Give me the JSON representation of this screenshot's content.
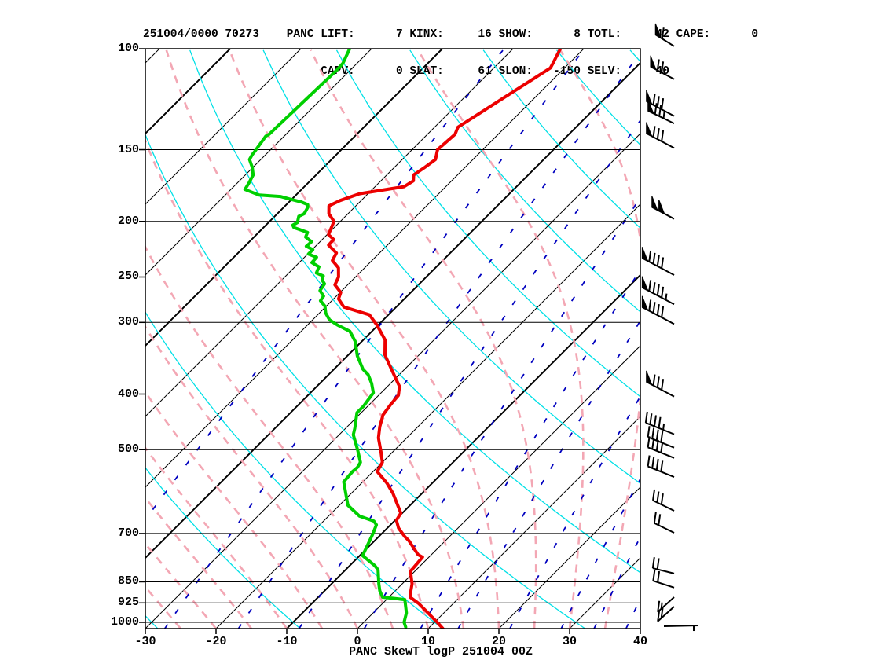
{
  "header": {
    "line1": "251004/0000 70273    PANC LIFT:      7 KINX:     16 SHOW:      8 TOTL:     42 CAPE:      0",
    "line2": "                          CAPV:      0 SLAT:     61 SLON:   -150 SELV:     40"
  },
  "title": "PANC SkewT logP 251004 00Z",
  "chart_data": {
    "type": "skewt_logp",
    "station": "PANC",
    "station_id": "70273",
    "datetime": "251004/0000",
    "valid_label": "251004 00Z",
    "indices": {
      "LIFT": 7,
      "KINX": 16,
      "SHOW": 8,
      "TOTL": 42,
      "CAPE": 0,
      "CAPV": 0,
      "SLAT": 61,
      "SLON": -150,
      "SELV": 40
    },
    "pressure_ticks": [
      100,
      150,
      200,
      250,
      300,
      400,
      500,
      700,
      850,
      925,
      1000
    ],
    "temp_ticks": [
      -30,
      -20,
      -10,
      0,
      10,
      20,
      30,
      40
    ],
    "profile_columns": [
      "pressure_hpa",
      "temp_c"
    ],
    "temperature_profile": [
      [
        100,
        -53.3
      ],
      [
        106,
        -52.3
      ],
      [
        108,
        -52.0
      ],
      [
        137,
        -56.7
      ],
      [
        141,
        -56.1
      ],
      [
        150,
        -56.4
      ],
      [
        156,
        -55.3
      ],
      [
        161,
        -55.7
      ],
      [
        166,
        -56.2
      ],
      [
        170,
        -55.4
      ],
      [
        174,
        -55.9
      ],
      [
        179,
        -61.2
      ],
      [
        184,
        -63.0
      ],
      [
        188,
        -63.8
      ],
      [
        194,
        -62.7
      ],
      [
        200,
        -60.9
      ],
      [
        205,
        -60.4
      ],
      [
        211,
        -59.8
      ],
      [
        215,
        -58.4
      ],
      [
        220,
        -58.3
      ],
      [
        227,
        -56.1
      ],
      [
        234,
        -55.6
      ],
      [
        241,
        -53.7
      ],
      [
        250,
        -52.4
      ],
      [
        258,
        -51.8
      ],
      [
        266,
        -49.9
      ],
      [
        273,
        -49.3
      ],
      [
        282,
        -47.4
      ],
      [
        291,
        -42.7
      ],
      [
        303,
        -40.2
      ],
      [
        322,
        -36.9
      ],
      [
        342,
        -34.8
      ],
      [
        374,
        -30.2
      ],
      [
        388,
        -28.3
      ],
      [
        402,
        -27.2
      ],
      [
        417,
        -27.0
      ],
      [
        435,
        -26.6
      ],
      [
        456,
        -25.4
      ],
      [
        477,
        -24.0
      ],
      [
        504,
        -21.7
      ],
      [
        526,
        -20.0
      ],
      [
        546,
        -19.4
      ],
      [
        572,
        -16.4
      ],
      [
        596,
        -14.1
      ],
      [
        645,
        -10.2
      ],
      [
        664,
        -9.8
      ],
      [
        685,
        -8.4
      ],
      [
        709,
        -6.3
      ],
      [
        720,
        -5.2
      ],
      [
        762,
        -1.9
      ],
      [
        770,
        -0.9
      ],
      [
        815,
        -0.6
      ],
      [
        857,
        1.4
      ],
      [
        881,
        2.2
      ],
      [
        904,
        3.0
      ],
      [
        927,
        5.1
      ],
      [
        1000,
        10.4
      ],
      [
        1026,
        12.1
      ]
    ],
    "dewpoint_profile": [
      [
        100,
        -83.1
      ],
      [
        106,
        -82.0
      ],
      [
        109,
        -81.9
      ],
      [
        141,
        -82.4
      ],
      [
        142,
        -82.6
      ],
      [
        151,
        -82.0
      ],
      [
        153,
        -81.9
      ],
      [
        156,
        -81.6
      ],
      [
        161,
        -80.1
      ],
      [
        166,
        -78.9
      ],
      [
        171,
        -78.4
      ],
      [
        176,
        -78.0
      ],
      [
        180,
        -75.2
      ],
      [
        181,
        -72.0
      ],
      [
        183,
        -70.2
      ],
      [
        185,
        -68.3
      ],
      [
        187,
        -67.0
      ],
      [
        189,
        -66.6
      ],
      [
        194,
        -66.2
      ],
      [
        196,
        -66.6
      ],
      [
        201,
        -65.9
      ],
      [
        203,
        -66.2
      ],
      [
        205,
        -65.7
      ],
      [
        209,
        -63.1
      ],
      [
        213,
        -62.7
      ],
      [
        217,
        -61.2
      ],
      [
        221,
        -61.3
      ],
      [
        224,
        -59.9
      ],
      [
        228,
        -59.9
      ],
      [
        231,
        -58.3
      ],
      [
        236,
        -58.2
      ],
      [
        240,
        -56.6
      ],
      [
        246,
        -56.1
      ],
      [
        249,
        -54.7
      ],
      [
        253,
        -54.3
      ],
      [
        257,
        -53.4
      ],
      [
        264,
        -53.1
      ],
      [
        270,
        -51.8
      ],
      [
        275,
        -51.6
      ],
      [
        281,
        -50.2
      ],
      [
        289,
        -49.1
      ],
      [
        297,
        -47.6
      ],
      [
        303,
        -45.8
      ],
      [
        311,
        -43.1
      ],
      [
        324,
        -40.9
      ],
      [
        343,
        -38.6
      ],
      [
        362,
        -35.9
      ],
      [
        370,
        -34.4
      ],
      [
        383,
        -32.7
      ],
      [
        398,
        -31.1
      ],
      [
        420,
        -30.6
      ],
      [
        431,
        -30.6
      ],
      [
        459,
        -28.7
      ],
      [
        471,
        -28.0
      ],
      [
        501,
        -25.2
      ],
      [
        526,
        -23.1
      ],
      [
        537,
        -22.8
      ],
      [
        546,
        -22.9
      ],
      [
        569,
        -22.7
      ],
      [
        625,
        -18.8
      ],
      [
        653,
        -15.6
      ],
      [
        666,
        -12.9
      ],
      [
        676,
        -12.0
      ],
      [
        702,
        -11.2
      ],
      [
        765,
        -9.6
      ],
      [
        797,
        -6.4
      ],
      [
        810,
        -5.4
      ],
      [
        857,
        -3.3
      ],
      [
        881,
        -2.2
      ],
      [
        904,
        -0.9
      ],
      [
        913,
        2.6
      ],
      [
        963,
        4.7
      ],
      [
        1000,
        5.7
      ],
      [
        1019,
        6.6
      ]
    ],
    "wind_barbs": [
      {
        "p": 99,
        "pennants": 1,
        "fulls": 1,
        "halfs": 0,
        "angle": 32
      },
      {
        "p": 113,
        "pennants": 1,
        "fulls": 2,
        "halfs": 0,
        "angle": 28
      },
      {
        "p": 131,
        "pennants": 1,
        "fulls": 3,
        "halfs": 0,
        "angle": 28
      },
      {
        "p": 135,
        "pennants": 1,
        "fulls": 2,
        "halfs": 1,
        "angle": 26
      },
      {
        "p": 149,
        "pennants": 1,
        "fulls": 3,
        "halfs": 0,
        "angle": 28
      },
      {
        "p": 198,
        "pennants": 2,
        "fulls": 0,
        "halfs": 0,
        "angle": 28
      },
      {
        "p": 248,
        "pennants": 1,
        "fulls": 4,
        "halfs": 0,
        "angle": 28
      },
      {
        "p": 279,
        "pennants": 1,
        "fulls": 4,
        "halfs": 1,
        "angle": 28
      },
      {
        "p": 302,
        "pennants": 1,
        "fulls": 4,
        "halfs": 0,
        "angle": 28
      },
      {
        "p": 404,
        "pennants": 1,
        "fulls": 3,
        "halfs": 0,
        "angle": 28
      },
      {
        "p": 470,
        "pennants": 0,
        "fulls": 4,
        "halfs": 1,
        "angle": 22
      },
      {
        "p": 496,
        "pennants": 0,
        "fulls": 4,
        "halfs": 0,
        "angle": 22
      },
      {
        "p": 517,
        "pennants": 0,
        "fulls": 4,
        "halfs": 0,
        "angle": 22
      },
      {
        "p": 558,
        "pennants": 0,
        "fulls": 4,
        "halfs": 0,
        "angle": 22
      },
      {
        "p": 639,
        "pennants": 0,
        "fulls": 3,
        "halfs": 0,
        "angle": 26
      },
      {
        "p": 698,
        "pennants": 0,
        "fulls": 2,
        "halfs": 0,
        "angle": 26
      },
      {
        "p": 822,
        "pennants": 0,
        "fulls": 2,
        "halfs": 0,
        "angle": 14
      },
      {
        "p": 870,
        "pennants": 0,
        "fulls": 2,
        "halfs": 0,
        "angle": 18
      },
      {
        "p": 904,
        "pennants": 0,
        "fulls": 1,
        "halfs": 1,
        "angle": -42
      },
      {
        "p": 939,
        "pennants": 0,
        "fulls": 2,
        "halfs": 0,
        "angle": -42
      },
      {
        "p": 1016,
        "pennants": 0,
        "fulls": 0,
        "halfs": 1,
        "angle": 0,
        "reversed": true
      }
    ],
    "grid": {
      "isotherms_c": {
        "min": -110,
        "max": 40,
        "step": 10,
        "bold": [
          -100,
          -70,
          -40,
          -10
        ]
      },
      "dry_adiabats_theta_c": {
        "min": -30,
        "max": 170,
        "step": 20
      },
      "moist_adiabats_thetaw_c": {
        "min": -40,
        "max": 35,
        "step": 5
      },
      "mixing_ratio_gkg": [
        0.1,
        0.4,
        1,
        2,
        4,
        7,
        10,
        16,
        25,
        33,
        43
      ]
    },
    "axis_ranges": {
      "pressure_top_hpa": 100,
      "pressure_bottom_hpa": 1026,
      "temp_left_c": -30,
      "temp_right_c": 40
    },
    "colors": {
      "temperature": "#ec0000",
      "dewpoint": "#00cf00",
      "dry_adiabat": "#00e0e6",
      "moist_adiabat": "#f3a7b4",
      "mixing_ratio": "#0000bf",
      "isotherm": "#000000",
      "frame": "#000000",
      "barbs": "#000000"
    }
  }
}
